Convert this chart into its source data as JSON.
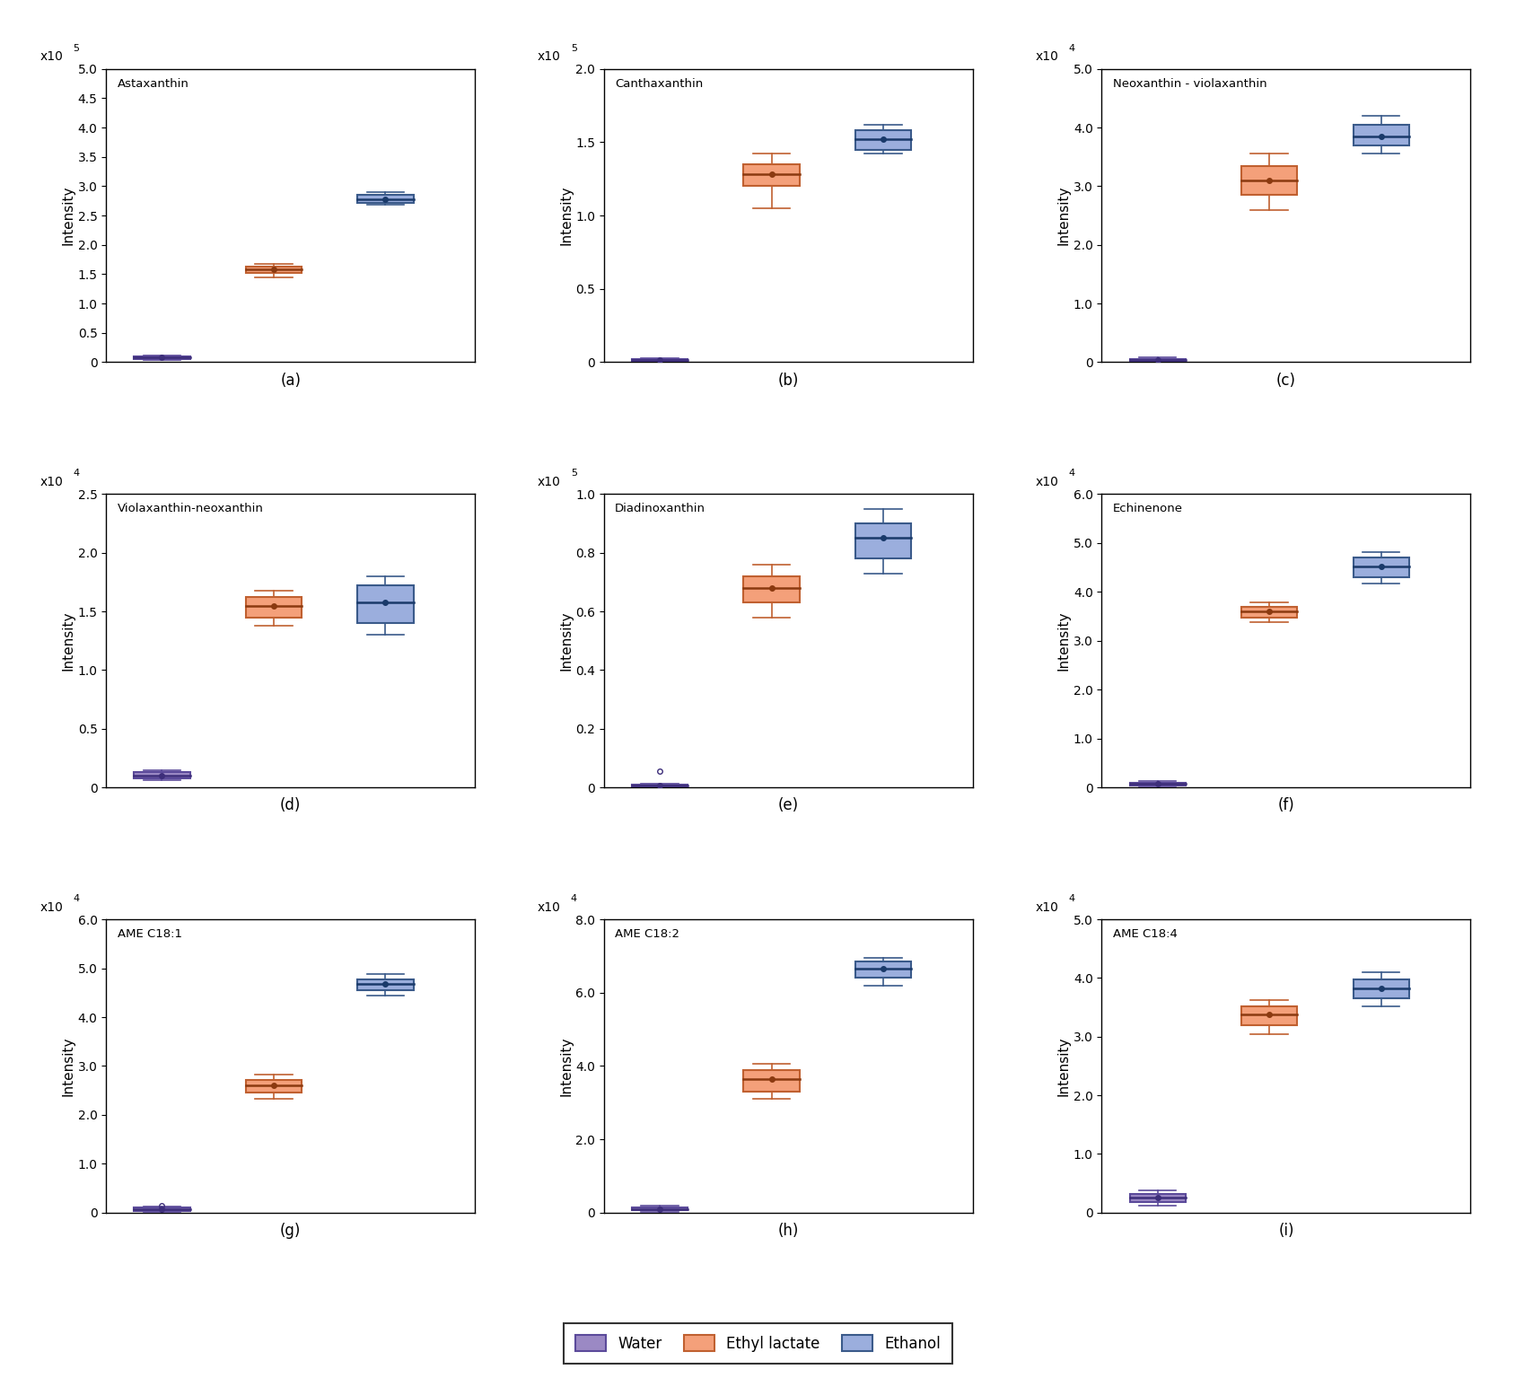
{
  "subplots": [
    {
      "title": "Astaxanthin",
      "label": "(a)",
      "scale": 100000,
      "scale_exp": 5,
      "ylim": [
        0,
        5
      ],
      "yticks": [
        0,
        0.5,
        1.0,
        1.5,
        2.0,
        2.5,
        3.0,
        3.5,
        4.0,
        4.5,
        5.0
      ],
      "water": {
        "q1": 0.05,
        "median": 0.08,
        "q3": 0.1,
        "whislo": 0.03,
        "whishi": 0.12,
        "mean": 0.08,
        "fliers": []
      },
      "ethyl": {
        "q1": 1.52,
        "median": 1.58,
        "q3": 1.63,
        "whislo": 1.45,
        "whishi": 1.68,
        "mean": 1.58,
        "fliers": []
      },
      "ethanol": {
        "q1": 2.72,
        "median": 2.78,
        "q3": 2.85,
        "whislo": 2.68,
        "whishi": 2.9,
        "mean": 2.78,
        "fliers": []
      }
    },
    {
      "title": "Canthaxanthin",
      "label": "(b)",
      "scale": 100000,
      "scale_exp": 5,
      "ylim": [
        0,
        2.0
      ],
      "yticks": [
        0,
        0.5,
        1.0,
        1.5,
        2.0
      ],
      "water": {
        "q1": 0.008,
        "median": 0.012,
        "q3": 0.018,
        "whislo": 0.003,
        "whishi": 0.025,
        "mean": 0.012,
        "fliers": []
      },
      "ethyl": {
        "q1": 1.2,
        "median": 1.28,
        "q3": 1.35,
        "whislo": 1.05,
        "whishi": 1.42,
        "mean": 1.28,
        "fliers": []
      },
      "ethanol": {
        "q1": 1.45,
        "median": 1.52,
        "q3": 1.58,
        "whislo": 1.42,
        "whishi": 1.62,
        "mean": 1.52,
        "fliers": []
      }
    },
    {
      "title": "Neoxanthin - violaxanthin",
      "label": "(c)",
      "scale": 10000,
      "scale_exp": 4,
      "ylim": [
        0,
        5
      ],
      "yticks": [
        0,
        1.0,
        2.0,
        3.0,
        4.0,
        5.0
      ],
      "water": {
        "q1": 0.02,
        "median": 0.04,
        "q3": 0.06,
        "whislo": 0.01,
        "whishi": 0.08,
        "mean": 0.04,
        "fliers": []
      },
      "ethyl": {
        "q1": 2.85,
        "median": 3.1,
        "q3": 3.35,
        "whislo": 2.6,
        "whishi": 3.55,
        "mean": 3.1,
        "fliers": []
      },
      "ethanol": {
        "q1": 3.7,
        "median": 3.85,
        "q3": 4.05,
        "whislo": 3.55,
        "whishi": 4.2,
        "mean": 3.85,
        "fliers": []
      }
    },
    {
      "title": "Violaxanthin-neoxanthin",
      "label": "(d)",
      "scale": 10000,
      "scale_exp": 4,
      "ylim": [
        0,
        2.5
      ],
      "yticks": [
        0,
        0.5,
        1.0,
        1.5,
        2.0,
        2.5
      ],
      "water": {
        "q1": 0.08,
        "median": 0.1,
        "q3": 0.13,
        "whislo": 0.06,
        "whishi": 0.15,
        "mean": 0.1,
        "fliers": []
      },
      "ethyl": {
        "q1": 1.45,
        "median": 1.55,
        "q3": 1.62,
        "whislo": 1.38,
        "whishi": 1.68,
        "mean": 1.55,
        "fliers": []
      },
      "ethanol": {
        "q1": 1.4,
        "median": 1.58,
        "q3": 1.72,
        "whislo": 1.3,
        "whishi": 1.8,
        "mean": 1.58,
        "fliers": []
      }
    },
    {
      "title": "Diadinoxanthin",
      "label": "(e)",
      "scale": 100000,
      "scale_exp": 5,
      "ylim": [
        0,
        1.0
      ],
      "yticks": [
        0,
        0.2,
        0.4,
        0.6,
        0.8,
        1.0
      ],
      "water": {
        "q1": 0.004,
        "median": 0.007,
        "q3": 0.01,
        "whislo": 0.002,
        "whishi": 0.013,
        "mean": 0.007,
        "fliers": [
          0.055
        ]
      },
      "ethyl": {
        "q1": 0.63,
        "median": 0.68,
        "q3": 0.72,
        "whislo": 0.58,
        "whishi": 0.76,
        "mean": 0.68,
        "fliers": []
      },
      "ethanol": {
        "q1": 0.78,
        "median": 0.85,
        "q3": 0.9,
        "whislo": 0.73,
        "whishi": 0.95,
        "mean": 0.85,
        "fliers": []
      }
    },
    {
      "title": "Echinenone",
      "label": "(f)",
      "scale": 10000,
      "scale_exp": 4,
      "ylim": [
        0,
        6
      ],
      "yticks": [
        0,
        1.0,
        2.0,
        3.0,
        4.0,
        5.0,
        6.0
      ],
      "water": {
        "q1": 0.04,
        "median": 0.07,
        "q3": 0.1,
        "whislo": 0.02,
        "whishi": 0.13,
        "mean": 0.07,
        "fliers": []
      },
      "ethyl": {
        "q1": 3.48,
        "median": 3.6,
        "q3": 3.7,
        "whislo": 3.38,
        "whishi": 3.78,
        "mean": 3.6,
        "fliers": []
      },
      "ethanol": {
        "q1": 4.3,
        "median": 4.52,
        "q3": 4.7,
        "whislo": 4.18,
        "whishi": 4.82,
        "mean": 4.52,
        "fliers": []
      }
    },
    {
      "title": "AME C18:1",
      "label": "(g)",
      "scale": 10000,
      "scale_exp": 4,
      "ylim": [
        0,
        6
      ],
      "yticks": [
        0,
        1.0,
        2.0,
        3.0,
        4.0,
        5.0,
        6.0
      ],
      "water": {
        "q1": 0.04,
        "median": 0.07,
        "q3": 0.1,
        "whislo": 0.02,
        "whishi": 0.13,
        "mean": 0.07,
        "fliers": [
          0.15
        ]
      },
      "ethyl": {
        "q1": 2.45,
        "median": 2.6,
        "q3": 2.72,
        "whislo": 2.32,
        "whishi": 2.82,
        "mean": 2.6,
        "fliers": []
      },
      "ethanol": {
        "q1": 4.55,
        "median": 4.68,
        "q3": 4.78,
        "whislo": 4.45,
        "whishi": 4.88,
        "mean": 4.68,
        "fliers": []
      }
    },
    {
      "title": "AME C18:2",
      "label": "(h)",
      "scale": 10000,
      "scale_exp": 4,
      "ylim": [
        0,
        8
      ],
      "yticks": [
        0,
        2.0,
        4.0,
        6.0,
        8.0
      ],
      "water": {
        "q1": 0.06,
        "median": 0.1,
        "q3": 0.14,
        "whislo": 0.03,
        "whishi": 0.18,
        "mean": 0.1,
        "fliers": []
      },
      "ethyl": {
        "q1": 3.3,
        "median": 3.65,
        "q3": 3.9,
        "whislo": 3.1,
        "whishi": 4.05,
        "mean": 3.65,
        "fliers": []
      },
      "ethanol": {
        "q1": 6.4,
        "median": 6.65,
        "q3": 6.85,
        "whislo": 6.2,
        "whishi": 6.95,
        "mean": 6.65,
        "fliers": []
      }
    },
    {
      "title": "AME C18:4",
      "label": "(i)",
      "scale": 10000,
      "scale_exp": 4,
      "ylim": [
        0,
        5
      ],
      "yticks": [
        0,
        1.0,
        2.0,
        3.0,
        4.0,
        5.0
      ],
      "water": {
        "q1": 0.18,
        "median": 0.25,
        "q3": 0.32,
        "whislo": 0.12,
        "whishi": 0.38,
        "mean": 0.25,
        "fliers": []
      },
      "ethyl": {
        "q1": 3.2,
        "median": 3.38,
        "q3": 3.52,
        "whislo": 3.05,
        "whishi": 3.62,
        "mean": 3.38,
        "fliers": []
      },
      "ethanol": {
        "q1": 3.65,
        "median": 3.82,
        "q3": 3.98,
        "whislo": 3.52,
        "whishi": 4.1,
        "mean": 3.82,
        "fliers": []
      }
    }
  ],
  "colors": {
    "water_face": "#9B89C4",
    "water_edge": "#5B4A9A",
    "water_median": "#3D2E7A",
    "ethyl_face": "#F4A07A",
    "ethyl_edge": "#C06030",
    "ethyl_median": "#8B3A10",
    "ethanol_face": "#9BAEDD",
    "ethanol_edge": "#3A5A8A",
    "ethanol_median": "#1A3A6A"
  },
  "legend": {
    "water_label": "Water",
    "ethyl_label": "Ethyl lactate",
    "ethanol_label": "Ethanol"
  },
  "box_width": 0.5,
  "figsize": [
    16.89,
    15.35
  ],
  "dpi": 100
}
